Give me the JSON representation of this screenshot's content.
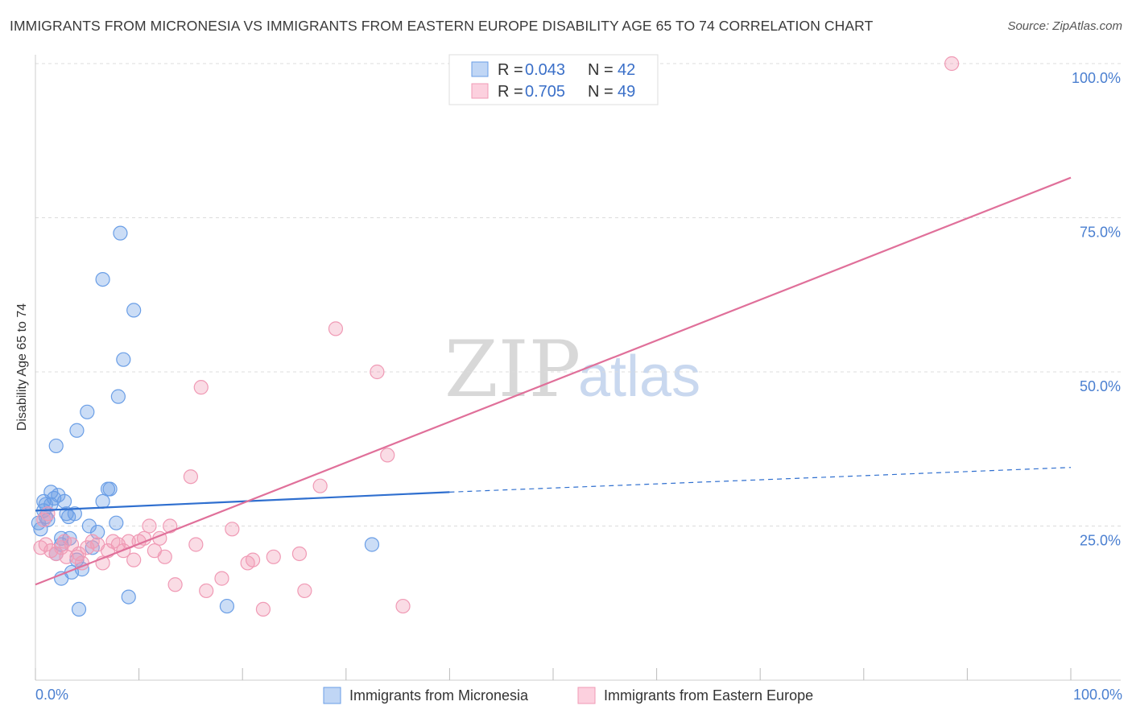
{
  "header": {
    "title": "IMMIGRANTS FROM MICRONESIA VS IMMIGRANTS FROM EASTERN EUROPE DISABILITY AGE 65 TO 74 CORRELATION CHART",
    "source": "Source: ZipAtlas.com"
  },
  "watermark": {
    "zip": "ZIP",
    "atlas": "atlas"
  },
  "chart_data": {
    "type": "scatter",
    "title": "IMMIGRANTS FROM MICRONESIA VS IMMIGRANTS FROM EASTERN EUROPE DISABILITY AGE 65 TO 74 CORRELATION CHART",
    "xlabel": "",
    "ylabel": "Disability Age 65 to 74",
    "xlim": [
      0,
      100
    ],
    "ylim": [
      0,
      100
    ],
    "x_tick_labels": [
      "0.0%",
      "100.0%"
    ],
    "y_ticks": [
      25,
      50,
      75,
      100
    ],
    "y_tick_labels": [
      "25.0%",
      "50.0%",
      "75.0%",
      "100.0%"
    ],
    "grid": true,
    "legend_position": "top-center",
    "colors": {
      "micronesia": "#6a9ee6",
      "eastern_europe": "#f09ab5",
      "micronesia_line": "#2f6fcf",
      "eastern_europe_line": "#e0709a"
    },
    "legend": [
      {
        "r_label": "R = ",
        "r_value": "0.043",
        "n_label": "N = ",
        "n_value": "42"
      },
      {
        "r_label": "R = ",
        "r_value": "0.705",
        "n_label": "N = ",
        "n_value": "49"
      }
    ],
    "series": [
      {
        "name": "Immigrants from Micronesia",
        "points": [
          [
            0.3,
            25.5
          ],
          [
            0.5,
            24.5
          ],
          [
            0.8,
            27.5
          ],
          [
            1.0,
            28.5
          ],
          [
            1.2,
            26.0
          ],
          [
            1.5,
            28.5
          ],
          [
            1.5,
            30.5
          ],
          [
            1.8,
            29.5
          ],
          [
            2.0,
            20.5
          ],
          [
            2.0,
            38.0
          ],
          [
            2.2,
            30.0
          ],
          [
            2.5,
            22.0
          ],
          [
            2.5,
            23.0
          ],
          [
            2.5,
            16.5
          ],
          [
            2.8,
            29.0
          ],
          [
            3.0,
            27.0
          ],
          [
            3.2,
            26.5
          ],
          [
            3.3,
            23.0
          ],
          [
            3.5,
            17.5
          ],
          [
            3.8,
            27.0
          ],
          [
            4.0,
            40.5
          ],
          [
            4.0,
            19.5
          ],
          [
            4.5,
            18.0
          ],
          [
            5.0,
            43.5
          ],
          [
            5.2,
            25.0
          ],
          [
            5.5,
            21.5
          ],
          [
            6.0,
            24.0
          ],
          [
            6.5,
            65.0
          ],
          [
            6.5,
            29.0
          ],
          [
            7.0,
            31.0
          ],
          [
            7.2,
            31.0
          ],
          [
            7.8,
            25.5
          ],
          [
            8.0,
            46.0
          ],
          [
            8.2,
            72.5
          ],
          [
            8.5,
            52.0
          ],
          [
            9.0,
            13.5
          ],
          [
            9.5,
            60.0
          ],
          [
            4.2,
            11.5
          ],
          [
            18.5,
            12.0
          ],
          [
            32.5,
            22.0
          ],
          [
            0.8,
            29.0
          ],
          [
            1.0,
            26.5
          ]
        ]
      },
      {
        "name": "Immigrants from Eastern Europe",
        "points": [
          [
            0.5,
            21.5
          ],
          [
            0.8,
            26.0
          ],
          [
            1.0,
            22.0
          ],
          [
            1.2,
            27.0
          ],
          [
            1.5,
            21.0
          ],
          [
            2.0,
            20.5
          ],
          [
            2.5,
            21.5
          ],
          [
            2.8,
            22.5
          ],
          [
            3.0,
            20.0
          ],
          [
            3.5,
            22.0
          ],
          [
            4.0,
            20.0
          ],
          [
            4.2,
            20.5
          ],
          [
            4.5,
            19.0
          ],
          [
            5.0,
            21.5
          ],
          [
            5.5,
            22.5
          ],
          [
            6.0,
            22.0
          ],
          [
            6.5,
            19.0
          ],
          [
            7.0,
            21.0
          ],
          [
            7.5,
            22.5
          ],
          [
            8.0,
            22.0
          ],
          [
            8.5,
            21.0
          ],
          [
            9.0,
            22.5
          ],
          [
            9.5,
            19.5
          ],
          [
            10.0,
            22.5
          ],
          [
            10.5,
            23.0
          ],
          [
            11.0,
            25.0
          ],
          [
            11.5,
            21.0
          ],
          [
            12.0,
            23.0
          ],
          [
            12.5,
            20.0
          ],
          [
            13.0,
            25.0
          ],
          [
            13.5,
            15.5
          ],
          [
            15.0,
            33.0
          ],
          [
            15.5,
            22.0
          ],
          [
            16.0,
            47.5
          ],
          [
            16.5,
            14.5
          ],
          [
            18.0,
            16.5
          ],
          [
            19.0,
            24.5
          ],
          [
            20.5,
            19.0
          ],
          [
            21.0,
            19.5
          ],
          [
            22.0,
            11.5
          ],
          [
            23.0,
            20.0
          ],
          [
            25.5,
            20.5
          ],
          [
            26.0,
            14.5
          ],
          [
            27.5,
            31.5
          ],
          [
            29.0,
            57.0
          ],
          [
            33.0,
            50.0
          ],
          [
            34.0,
            36.5
          ],
          [
            35.5,
            12.0
          ],
          [
            88.5,
            100.0
          ]
        ]
      }
    ],
    "trend_lines": [
      {
        "series": "Immigrants from Micronesia",
        "x": [
          0,
          40
        ],
        "y": [
          27.5,
          30.5
        ],
        "dashed_to": [
          100,
          34.5
        ]
      },
      {
        "series": "Immigrants from Eastern Europe",
        "x": [
          0,
          100
        ],
        "y": [
          15.5,
          81.5
        ]
      }
    ]
  }
}
